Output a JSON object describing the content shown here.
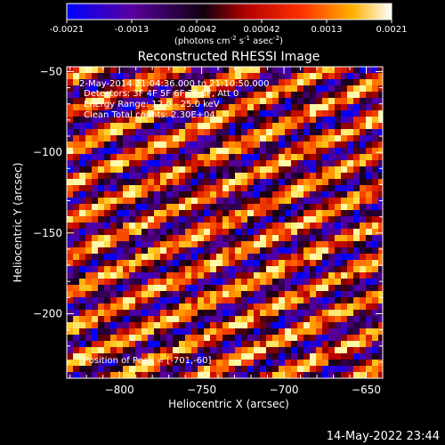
{
  "colorbar": {
    "ticks": [
      "-0.0021",
      "-0.0013",
      "-0.00042",
      "0.00042",
      "0.0013",
      "0.0021"
    ],
    "unit_label": "(photons cm",
    "unit_sup1": "-2",
    "unit_mid1": " s",
    "unit_sup2": "-1",
    "unit_mid2": " asec",
    "unit_sup3": "-2",
    "unit_end": ")",
    "range": [
      -0.0021,
      0.0021
    ],
    "colors": [
      "#0000ff",
      "#5a00a0",
      "#000000",
      "#b00000",
      "#ff3000",
      "#ffa000",
      "#ffffff"
    ]
  },
  "chart_data": {
    "type": "heatmap",
    "title": "Reconstructed RHESSI Image",
    "xlabel": "Heliocentric X (arcsec)",
    "ylabel": "Heliocentric Y (arcsec)",
    "xlim": [
      -832,
      -640
    ],
    "ylim": [
      -240,
      -47
    ],
    "xticks": [
      -800,
      -750,
      -700,
      -650
    ],
    "yticks": [
      -50,
      -100,
      -150,
      -200
    ],
    "xtick_labels": [
      "−800",
      "−750",
      "−700",
      "−650"
    ],
    "ytick_labels": [
      "−50",
      "−100",
      "−150",
      "−200"
    ],
    "info_lines": [
      "2-May-2014 21:04:36.000 to 21:10:50.000",
      "Detectors: 3F 4F 5F 6F 7F 8F, Att 0",
      "Energy Range: 12.0 - 25.0 keV",
      "Clean     Total counts: 2.30E+04"
    ],
    "peak_text": "Position of Peak = [-701,-60]",
    "pattern": "diagonal fringes (lower-left to upper-right), alternating bright yellow/red and dark blue/purple bands"
  },
  "timestamp": "14-May-2022 23:44"
}
